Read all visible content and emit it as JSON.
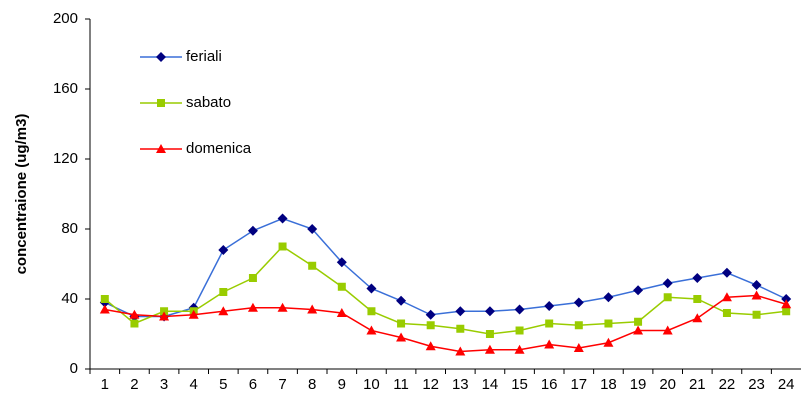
{
  "chart_data": {
    "type": "line",
    "y_label": "concentraione (ug/m3)",
    "categories": [
      "1",
      "2",
      "3",
      "4",
      "5",
      "6",
      "7",
      "8",
      "9",
      "10",
      "11",
      "12",
      "13",
      "14",
      "15",
      "16",
      "17",
      "18",
      "19",
      "20",
      "21",
      "22",
      "23",
      "24"
    ],
    "series": [
      {
        "name": "feriali",
        "color": "#3a6fd8",
        "marker_color": "#000080",
        "marker": "diamond",
        "values": [
          38,
          30,
          30,
          35,
          68,
          79,
          86,
          80,
          61,
          46,
          39,
          31,
          33,
          33,
          34,
          36,
          38,
          41,
          45,
          49,
          52,
          55,
          48,
          40
        ]
      },
      {
        "name": "sabato",
        "color": "#99cc00",
        "marker_color": "#99cc00",
        "marker": "square",
        "values": [
          40,
          26,
          33,
          33,
          44,
          52,
          70,
          59,
          47,
          33,
          26,
          25,
          23,
          20,
          22,
          26,
          25,
          26,
          27,
          41,
          40,
          32,
          31,
          33
        ]
      },
      {
        "name": "domenica",
        "color": "#ff0000",
        "marker_color": "#ff0000",
        "marker": "triangle",
        "values": [
          34,
          31,
          30,
          31,
          33,
          35,
          35,
          34,
          32,
          22,
          18,
          13,
          10,
          11,
          11,
          14,
          12,
          15,
          22,
          22,
          29,
          41,
          42,
          37
        ]
      }
    ],
    "ylim": [
      0,
      200
    ],
    "yticks": [
      0,
      40,
      80,
      120,
      160,
      200
    ],
    "grid": false,
    "legend": "upper left"
  }
}
